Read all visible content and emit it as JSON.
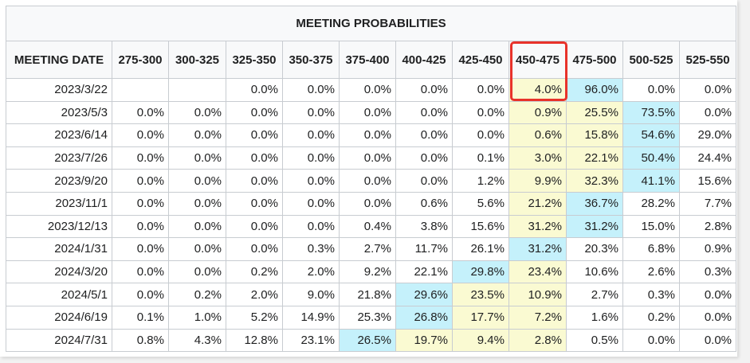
{
  "title": "MEETING PROBABILITIES",
  "columns": [
    "MEETING DATE",
    "275-300",
    "300-325",
    "325-350",
    "350-375",
    "375-400",
    "400-425",
    "425-450",
    "450-475",
    "475-500",
    "500-525",
    "525-550"
  ],
  "highlight_colors": {
    "yellow": "#fafad2",
    "cyan": "#c5f1fb",
    "marker": "#e8322a"
  },
  "rows": [
    {
      "date": "2023/3/22",
      "values": [
        "",
        "",
        "0.0%",
        "0.0%",
        "0.0%",
        "0.0%",
        "0.0%",
        "4.0%",
        "96.0%",
        "0.0%",
        "0.0%"
      ],
      "cyan": 8,
      "yellow": [
        7
      ]
    },
    {
      "date": "2023/5/3",
      "values": [
        "0.0%",
        "0.0%",
        "0.0%",
        "0.0%",
        "0.0%",
        "0.0%",
        "0.0%",
        "0.9%",
        "25.5%",
        "73.5%",
        "0.0%"
      ],
      "cyan": 9,
      "yellow": [
        7,
        8
      ]
    },
    {
      "date": "2023/6/14",
      "values": [
        "0.0%",
        "0.0%",
        "0.0%",
        "0.0%",
        "0.0%",
        "0.0%",
        "0.0%",
        "0.6%",
        "15.8%",
        "54.6%",
        "29.0%"
      ],
      "cyan": 9,
      "yellow": [
        7,
        8
      ]
    },
    {
      "date": "2023/7/26",
      "values": [
        "0.0%",
        "0.0%",
        "0.0%",
        "0.0%",
        "0.0%",
        "0.0%",
        "0.1%",
        "3.0%",
        "22.1%",
        "50.4%",
        "24.4%"
      ],
      "cyan": 9,
      "yellow": [
        7,
        8
      ]
    },
    {
      "date": "2023/9/20",
      "values": [
        "0.0%",
        "0.0%",
        "0.0%",
        "0.0%",
        "0.0%",
        "0.0%",
        "1.2%",
        "9.9%",
        "32.3%",
        "41.1%",
        "15.6%"
      ],
      "cyan": 9,
      "yellow": [
        7,
        8
      ]
    },
    {
      "date": "2023/11/1",
      "values": [
        "0.0%",
        "0.0%",
        "0.0%",
        "0.0%",
        "0.0%",
        "0.6%",
        "5.6%",
        "21.2%",
        "36.7%",
        "28.2%",
        "7.7%"
      ],
      "cyan": 8,
      "yellow": [
        7
      ]
    },
    {
      "date": "2023/12/13",
      "values": [
        "0.0%",
        "0.0%",
        "0.0%",
        "0.0%",
        "0.4%",
        "3.8%",
        "15.6%",
        "31.2%",
        "31.2%",
        "15.0%",
        "2.8%"
      ],
      "cyan": 8,
      "yellow": [
        7
      ]
    },
    {
      "date": "2024/1/31",
      "values": [
        "0.0%",
        "0.0%",
        "0.0%",
        "0.3%",
        "2.7%",
        "11.7%",
        "26.1%",
        "31.2%",
        "20.3%",
        "6.8%",
        "0.9%"
      ],
      "cyan": 7,
      "yellow": []
    },
    {
      "date": "2024/3/20",
      "values": [
        "0.0%",
        "0.0%",
        "0.2%",
        "2.0%",
        "9.2%",
        "22.1%",
        "29.8%",
        "23.4%",
        "10.6%",
        "2.6%",
        "0.3%"
      ],
      "cyan": 6,
      "yellow": [
        7
      ]
    },
    {
      "date": "2024/5/1",
      "values": [
        "0.0%",
        "0.2%",
        "2.0%",
        "9.0%",
        "21.8%",
        "29.6%",
        "23.5%",
        "10.9%",
        "2.7%",
        "0.3%",
        "0.0%"
      ],
      "cyan": 5,
      "yellow": [
        6,
        7
      ]
    },
    {
      "date": "2024/6/19",
      "values": [
        "0.1%",
        "1.0%",
        "5.2%",
        "14.9%",
        "25.3%",
        "26.8%",
        "17.7%",
        "7.2%",
        "1.6%",
        "0.2%",
        "0.0%"
      ],
      "cyan": 5,
      "yellow": [
        6,
        7
      ]
    },
    {
      "date": "2024/7/31",
      "values": [
        "0.8%",
        "4.3%",
        "12.8%",
        "23.1%",
        "26.5%",
        "19.7%",
        "9.4%",
        "2.8%",
        "0.5%",
        "0.0%",
        "0.0%"
      ],
      "cyan": 4,
      "yellow": [
        5,
        6,
        7
      ]
    }
  ]
}
